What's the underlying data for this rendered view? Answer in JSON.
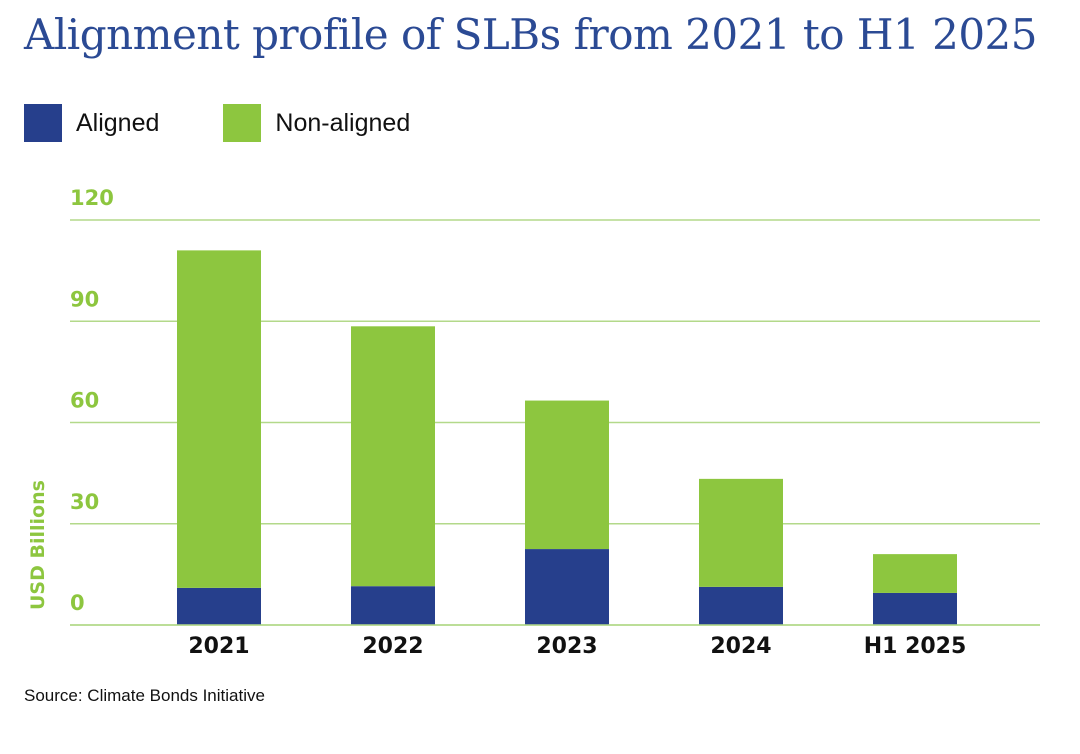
{
  "title": "Alignment profile of SLBs from 2021 to H1 2025",
  "source": "Source: Climate Bonds Initiative",
  "colors": {
    "aligned": "#263f8c",
    "non_aligned": "#8dc63f",
    "grid": "#b3d98a",
    "tick": "#8dc63f",
    "title": "#2b4a94"
  },
  "chart_data": {
    "type": "bar",
    "stacked": true,
    "title": "Alignment profile of SLBs from 2021 to H1 2025",
    "xlabel": "",
    "ylabel": "USD Billions",
    "categories": [
      "2021",
      "2022",
      "2023",
      "2024",
      "H1 2025"
    ],
    "series": [
      {
        "name": "Aligned",
        "values": [
          11,
          11.5,
          22.5,
          11.3,
          9.5
        ]
      },
      {
        "name": "Non-aligned",
        "values": [
          100,
          77,
          44,
          32,
          11.5
        ]
      }
    ],
    "ylim": [
      0,
      120
    ],
    "yticks": [
      "0",
      "30",
      "60",
      "90",
      "120"
    ],
    "legend_position": "top-left",
    "grid": true
  }
}
